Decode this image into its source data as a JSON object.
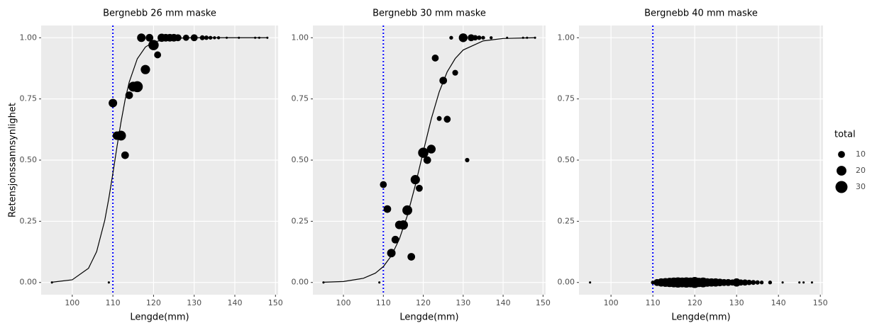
{
  "chart_data": [
    {
      "type": "scatter",
      "title": "Bergnebb 26 mm maske",
      "xlabel": "Lengde(mm)",
      "ylabel": "Retensjonssannsynlighet",
      "xlim": [
        92.35,
        150.65
      ],
      "ylim": [
        -0.05,
        1.05
      ],
      "xticks": [
        100,
        110,
        120,
        130,
        140,
        150
      ],
      "yticks": [
        {
          "value": 0,
          "label": "0.00"
        },
        {
          "value": 0.25,
          "label": "0.25"
        },
        {
          "value": 0.5,
          "label": "0.50"
        },
        {
          "value": 0.75,
          "label": "0.75"
        },
        {
          "value": 1,
          "label": "1.00"
        }
      ],
      "grid": true,
      "color": "#000000",
      "vline": 110,
      "vline_color": "#0000ff",
      "points": {
        "x": [
          95,
          109,
          110,
          111,
          112,
          113,
          114,
          115,
          116,
          117,
          118,
          119,
          120,
          121,
          122,
          123,
          124,
          125,
          126,
          128,
          130,
          132,
          133,
          134,
          135,
          136,
          138,
          141,
          145,
          146,
          148
        ],
        "values": [
          0,
          0,
          0.733,
          0.6,
          0.6,
          0.52,
          0.765,
          0.8,
          0.8,
          1,
          0.87,
          1,
          0.97,
          0.93,
          1,
          1,
          1,
          1,
          1,
          1,
          1,
          1,
          1,
          1,
          1,
          1,
          1,
          1,
          1,
          1,
          1
        ],
        "sizes": [
          1,
          1,
          15,
          15,
          20,
          12,
          12,
          20,
          25,
          15,
          18,
          12,
          22,
          10,
          14,
          12,
          12,
          12,
          10,
          8,
          10,
          5,
          4,
          3,
          2,
          2,
          1,
          1,
          1,
          1,
          1
        ]
      },
      "curve": {
        "x": [
          95,
          100,
          104,
          106,
          108,
          109,
          110,
          111,
          112,
          113,
          114,
          116,
          118,
          120,
          125,
          130,
          140,
          148
        ],
        "values": [
          0.001,
          0.011,
          0.058,
          0.126,
          0.254,
          0.344,
          0.446,
          0.554,
          0.656,
          0.746,
          0.818,
          0.914,
          0.962,
          0.983,
          0.998,
          1,
          1,
          1
        ]
      }
    },
    {
      "type": "scatter",
      "title": "Bergnebb 30 mm maske",
      "xlabel": "Lengde(mm)",
      "xlim": [
        92.35,
        150.65
      ],
      "ylim": [
        -0.05,
        1.05
      ],
      "xticks": [
        100,
        110,
        120,
        130,
        140,
        150
      ],
      "yticks": [
        {
          "value": 0,
          "label": "0.00"
        },
        {
          "value": 0.25,
          "label": "0.25"
        },
        {
          "value": 0.5,
          "label": "0.50"
        },
        {
          "value": 0.75,
          "label": "0.75"
        },
        {
          "value": 1,
          "label": "1.00"
        }
      ],
      "grid": true,
      "color": "#000000",
      "vline": 110,
      "vline_color": "#0000ff",
      "points": {
        "x": [
          95,
          109,
          110,
          111,
          112,
          113,
          114,
          115,
          116,
          117,
          118,
          119,
          120,
          121,
          122,
          123,
          124,
          125,
          126,
          127,
          128,
          130,
          131,
          132,
          133,
          134,
          135,
          137,
          141,
          145,
          146,
          148
        ],
        "values": [
          0,
          0,
          0.4,
          0.3,
          0.12,
          0.175,
          0.235,
          0.235,
          0.295,
          0.105,
          0.42,
          0.385,
          0.53,
          0.5,
          0.545,
          0.917,
          0.67,
          0.825,
          0.667,
          1,
          0.857,
          1,
          0.5,
          1,
          1,
          1,
          1,
          1,
          1,
          1,
          1,
          1
        ],
        "sizes": [
          1,
          1,
          10,
          12,
          15,
          12,
          15,
          18,
          20,
          12,
          18,
          10,
          22,
          12,
          16,
          10,
          5,
          12,
          10,
          3,
          7,
          16,
          4,
          10,
          6,
          4,
          3,
          2,
          1,
          1,
          1,
          1
        ]
      },
      "curve": {
        "x": [
          95,
          100,
          105,
          108,
          110,
          112,
          114,
          116,
          118,
          120,
          122,
          124,
          126,
          128,
          130,
          135,
          140,
          148
        ],
        "values": [
          0.001,
          0.004,
          0.017,
          0.038,
          0.065,
          0.109,
          0.177,
          0.273,
          0.397,
          0.535,
          0.668,
          0.779,
          0.861,
          0.915,
          0.95,
          0.987,
          0.997,
          1
        ]
      }
    },
    {
      "type": "scatter",
      "title": "Bergnebb 40 mm maske",
      "xlabel": "Lengde(mm)",
      "xlim": [
        92.35,
        150.65
      ],
      "ylim": [
        -0.05,
        1.05
      ],
      "xticks": [
        100,
        110,
        120,
        130,
        140,
        150
      ],
      "yticks": [
        {
          "value": 0,
          "label": "0.00"
        },
        {
          "value": 0.25,
          "label": "0.25"
        },
        {
          "value": 0.5,
          "label": "0.50"
        },
        {
          "value": 0.75,
          "label": "0.75"
        },
        {
          "value": 1,
          "label": "1.00"
        }
      ],
      "grid": true,
      "color": "#000000",
      "vline": 110,
      "vline_color": "#0000ff",
      "points": {
        "x": [
          95,
          110,
          111,
          112,
          113,
          114,
          115,
          116,
          117,
          118,
          119,
          120,
          121,
          122,
          123,
          124,
          125,
          126,
          127,
          128,
          129,
          130,
          131,
          132,
          133,
          134,
          135,
          136,
          138,
          141,
          145,
          146,
          148
        ],
        "values": [
          0,
          0,
          0,
          0,
          0,
          0,
          0,
          0,
          0,
          0,
          0,
          0,
          0,
          0,
          0,
          0,
          0,
          0,
          0,
          0,
          0,
          0,
          0,
          0,
          0,
          0,
          0,
          0,
          0,
          0,
          0,
          0,
          0
        ],
        "sizes": [
          1,
          3,
          10,
          14,
          16,
          18,
          20,
          22,
          20,
          22,
          20,
          25,
          18,
          20,
          15,
          14,
          14,
          12,
          10,
          10,
          8,
          14,
          8,
          8,
          6,
          5,
          4,
          3,
          3,
          1,
          1,
          1,
          1
        ]
      },
      "size_legend": {
        "title": "total",
        "values": [
          10,
          20,
          30
        ]
      }
    }
  ]
}
